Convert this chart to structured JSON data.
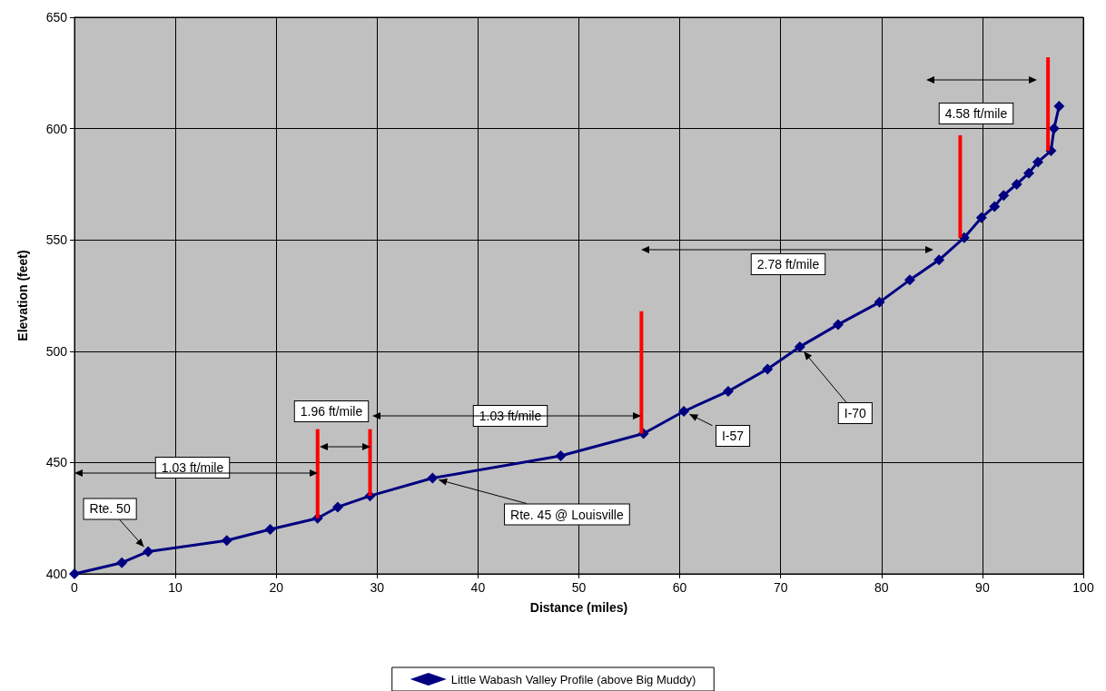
{
  "chart_data": {
    "type": "line",
    "xlabel": "Distance (miles)",
    "ylabel": "Elevation (feet)",
    "xlim": [
      0,
      100
    ],
    "xticks": [
      0,
      10,
      20,
      30,
      40,
      50,
      60,
      70,
      80,
      90,
      100
    ],
    "ylim": [
      400,
      650
    ],
    "yticks": [
      400,
      450,
      500,
      550,
      600,
      650
    ],
    "grid": true,
    "legend": "bottom",
    "line_style": "solid",
    "series": [
      {
        "name": "Little Wabash Valley Profile (above Big Muddy)",
        "color": "#000080",
        "marker": "diamond",
        "x": [
          0,
          4.7,
          7.3,
          15.1,
          19.4,
          24.1,
          26.1,
          29.3,
          35.5,
          48.2,
          56.4,
          60.4,
          64.8,
          68.7,
          71.9,
          75.7,
          79.8,
          82.8,
          85.7,
          88.2,
          89.9,
          91.2,
          92.1,
          93.4,
          94.6,
          95.5,
          96.8,
          97.1,
          97.6
        ],
        "values": [
          400,
          405,
          410,
          415,
          420,
          425,
          430,
          435,
          443,
          453,
          463,
          473,
          482,
          492,
          502,
          512,
          522,
          532,
          541,
          551,
          560,
          565,
          570,
          575,
          580,
          585,
          590,
          600,
          610
        ]
      },
      {
        "color": "#ff0000",
        "marker": "none",
        "x": [
          24.1,
          24.1
        ],
        "values": [
          425,
          465
        ]
      },
      {
        "color": "#ff0000",
        "marker": "none",
        "x": [
          29.3,
          29.3
        ],
        "values": [
          435,
          465
        ]
      },
      {
        "color": "#ff0000",
        "marker": "none",
        "x": [
          56.2,
          56.2
        ],
        "values": [
          463,
          518
        ]
      },
      {
        "color": "#ff0000",
        "marker": "none",
        "x": [
          87.8,
          87.8
        ],
        "values": [
          551,
          597
        ]
      },
      {
        "color": "#ff0000",
        "marker": "none",
        "x": [
          96.5,
          96.5
        ],
        "values": [
          590,
          632
        ]
      }
    ],
    "annotations": [
      "1.03 ft/mile",
      "1.96 ft/mile",
      "1.03 ft/mile",
      "2.78 ft/mile",
      "4.58 ft/mile",
      {
        "text": "Rte. 50",
        "x": 7.3,
        "y": 410
      },
      {
        "text": "Rte. 45 @ Louisville",
        "x": 35.5,
        "y": 443
      },
      {
        "text": "I-57",
        "x": 60.4,
        "y": 473
      },
      {
        "text": "I-70",
        "x": 71.9,
        "y": 502
      }
    ]
  }
}
